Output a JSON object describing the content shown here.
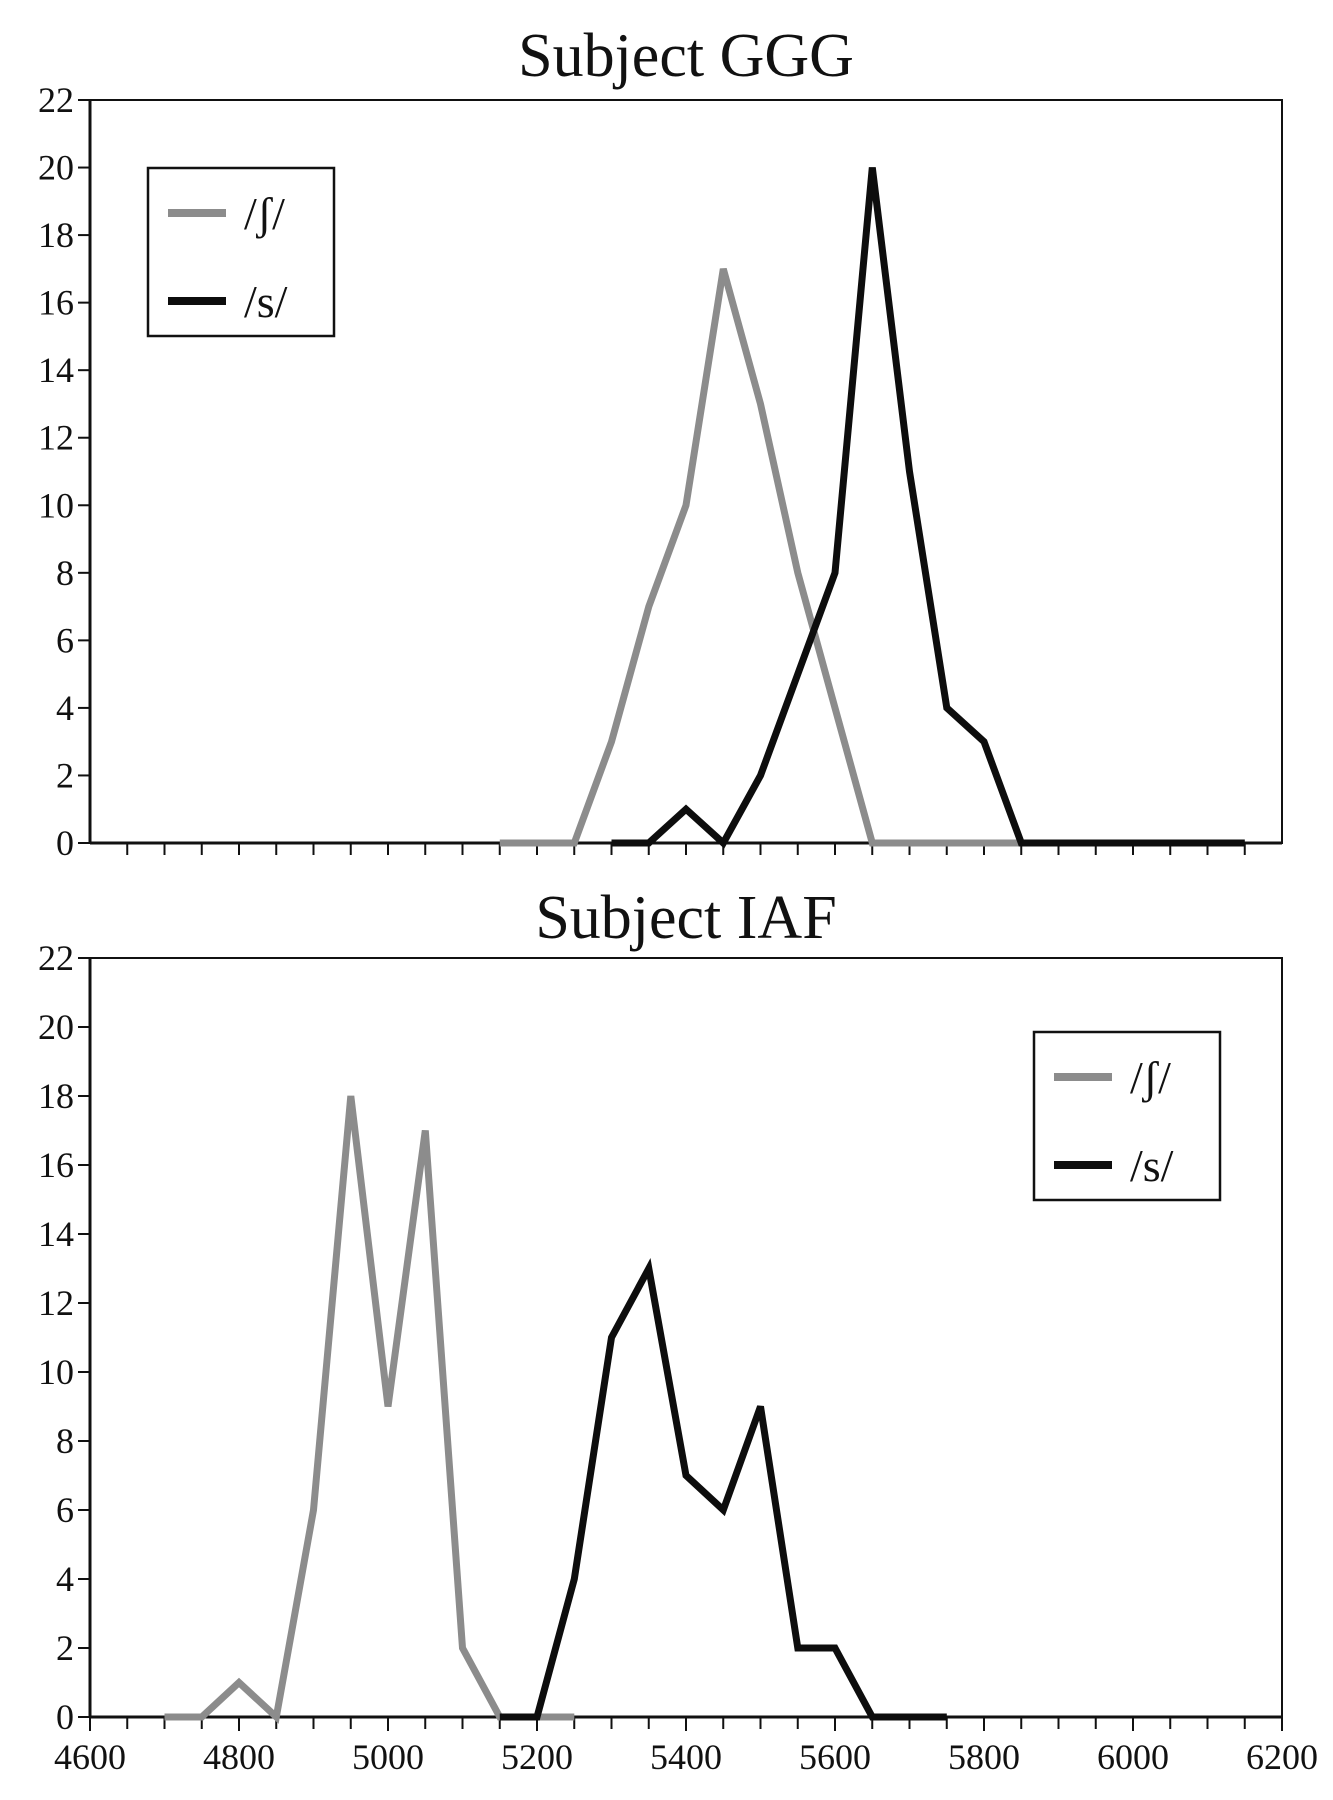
{
  "colors": {
    "sh": "#8c8c8c",
    "s": "#0d0d0d"
  },
  "chart_data": [
    {
      "type": "line",
      "title": "Subject GGG",
      "xlim": [
        4600,
        6200
      ],
      "ylim": [
        0,
        22
      ],
      "yticks": [
        "0",
        "2",
        "4",
        "6",
        "8",
        "10",
        "12",
        "14",
        "16",
        "18",
        "20",
        "22"
      ],
      "xticks": [],
      "legend_position": "top-left",
      "series": [
        {
          "name": "/ʃ/",
          "color_key": "sh",
          "x": [
            5150,
            5250,
            5300,
            5350,
            5400,
            5450,
            5500,
            5550,
            5600,
            5650,
            5700,
            5750,
            5800,
            5850
          ],
          "y": [
            0,
            0,
            3,
            7,
            10,
            17,
            13,
            8,
            4,
            0,
            0,
            0,
            0,
            0
          ]
        },
        {
          "name": "/s/",
          "color_key": "s",
          "x": [
            5300,
            5350,
            5400,
            5450,
            5500,
            5550,
            5600,
            5650,
            5700,
            5750,
            5800,
            5850,
            5900,
            5950,
            6000,
            6050,
            6100,
            6150
          ],
          "y": [
            0,
            0,
            1,
            0,
            2,
            5,
            8,
            20,
            11,
            4,
            3,
            0,
            0,
            0,
            0,
            0,
            0,
            0
          ]
        }
      ]
    },
    {
      "type": "line",
      "title": "Subject IAF",
      "xlim": [
        4600,
        6200
      ],
      "ylim": [
        0,
        22
      ],
      "yticks": [
        "0",
        "2",
        "4",
        "6",
        "8",
        "10",
        "12",
        "14",
        "16",
        "18",
        "20",
        "22"
      ],
      "xticks": [
        "4600",
        "4800",
        "5000",
        "5200",
        "5400",
        "5600",
        "5800",
        "6000",
        "6200"
      ],
      "legend_position": "top-right",
      "series": [
        {
          "name": "/ʃ/",
          "color_key": "sh",
          "x": [
            4700,
            4750,
            4800,
            4850,
            4900,
            4950,
            5000,
            5050,
            5100,
            5150,
            5200,
            5250
          ],
          "y": [
            0,
            0,
            1,
            0,
            6,
            18,
            9,
            17,
            2,
            0,
            0,
            0
          ]
        },
        {
          "name": "/s/",
          "color_key": "s",
          "x": [
            5150,
            5200,
            5250,
            5300,
            5350,
            5400,
            5450,
            5500,
            5550,
            5600,
            5650,
            5700,
            5750
          ],
          "y": [
            0,
            0,
            4,
            11,
            13,
            7,
            6,
            9,
            2,
            2,
            0,
            0,
            0
          ]
        }
      ]
    }
  ]
}
